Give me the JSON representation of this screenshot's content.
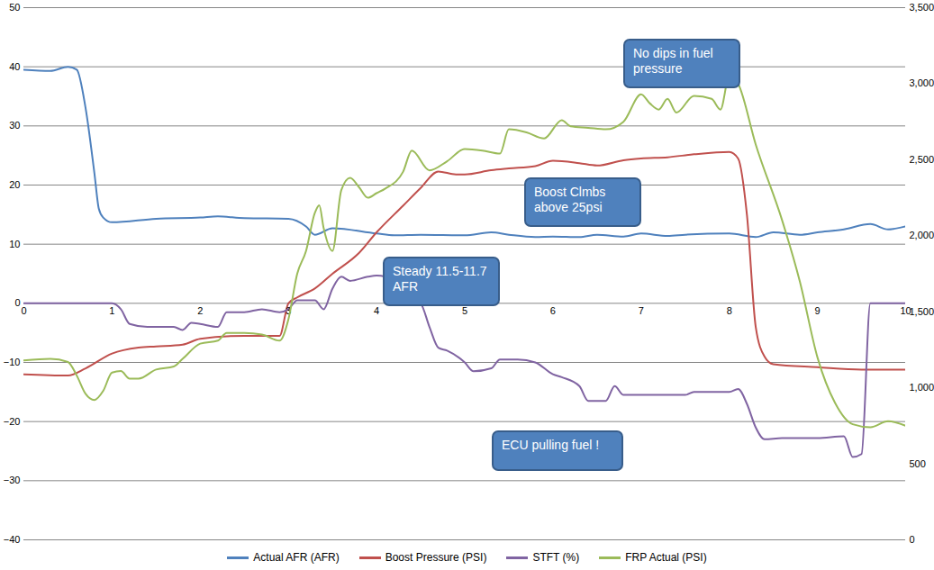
{
  "chart_data": {
    "type": "line",
    "xlim": [
      0,
      10
    ],
    "xticks": [
      0,
      1,
      2,
      3,
      4,
      5,
      6,
      7,
      8,
      9,
      10
    ],
    "ylim": [
      -40,
      50
    ],
    "yticks": [
      -40,
      -30,
      -20,
      -10,
      0,
      10,
      20,
      30,
      40,
      50
    ],
    "y2lim": [
      0,
      3500
    ],
    "y2ticks": [
      0,
      500,
      1000,
      1500,
      2000,
      2500,
      3000,
      3500
    ],
    "grid": true,
    "legend": "bottom",
    "annotations": [
      "No dips in fuel pressure",
      "Boost Clmbs above 25psi",
      "Steady 11.5-11.7 AFR",
      "ECU pulling fuel !"
    ],
    "series": [
      {
        "name": "Actual AFR (AFR)",
        "color": "#4f81bd",
        "x": [
          0,
          0.3,
          0.5,
          0.6,
          0.7,
          0.8,
          0.85,
          0.9,
          1,
          1.5,
          2,
          2.2,
          2.5,
          3,
          3.2,
          3.3,
          3.5,
          4,
          4.2,
          4.5,
          5,
          5.3,
          5.5,
          5.8,
          6,
          6.3,
          6.5,
          6.8,
          7,
          7.3,
          7.5,
          8,
          8.3,
          8.5,
          8.8,
          9,
          9.3,
          9.6,
          9.8,
          10
        ],
        "values": [
          39.5,
          39.3,
          40,
          39.5,
          33,
          22,
          16,
          14.5,
          13.7,
          14.3,
          14.5,
          14.7,
          14.4,
          14.3,
          13,
          11.6,
          12.7,
          11.8,
          11.5,
          11.6,
          11.5,
          12,
          11.6,
          11.2,
          11.3,
          11.2,
          11.6,
          11.3,
          11.8,
          11.4,
          11.6,
          11.8,
          11.2,
          12,
          11.6,
          12,
          12.5,
          13.4,
          12.5,
          13
        ]
      },
      {
        "name": "Boost Pressure (PSI)",
        "color": "#c0504d",
        "x": [
          0,
          0.5,
          0.7,
          1,
          1.3,
          1.5,
          1.8,
          2,
          2.5,
          2.9,
          3,
          3.1,
          3.3,
          3.5,
          3.8,
          4,
          4.3,
          4.5,
          4.7,
          4.9,
          5,
          5.3,
          5.5,
          5.8,
          6,
          6.3,
          6.5,
          6.8,
          7,
          7.3,
          7.6,
          8,
          8.1,
          8.2,
          8.3,
          8.4,
          8.5,
          9,
          9.5,
          10
        ],
        "values": [
          -12,
          -12.2,
          -11,
          -8.5,
          -7.5,
          -7.3,
          -7,
          -6,
          -5.5,
          -5.5,
          0,
          1,
          2.5,
          5,
          8.5,
          12,
          16.5,
          19.5,
          22.3,
          21.8,
          21.8,
          22.5,
          22.8,
          23.2,
          24.1,
          23.7,
          23.3,
          24.2,
          24.5,
          24.7,
          25.2,
          25.6,
          24.5,
          15,
          -4,
          -9,
          -10.3,
          -10.8,
          -11.2,
          -11.2
        ]
      },
      {
        "name": "STFT (%)",
        "color": "#8064a2",
        "x": [
          0,
          1,
          1.1,
          1.2,
          1.4,
          1.7,
          1.8,
          1.9,
          2,
          2.2,
          2.3,
          2.5,
          2.7,
          2.9,
          3,
          3.1,
          3.3,
          3.4,
          3.5,
          3.6,
          3.7,
          3.9,
          4,
          4.1,
          4.3,
          4.5,
          4.6,
          4.7,
          4.8,
          5,
          5.1,
          5.3,
          5.4,
          5.6,
          5.8,
          6,
          6.1,
          6.3,
          6.4,
          6.6,
          6.7,
          6.8,
          7,
          7.5,
          7.6,
          8,
          8.1,
          8.2,
          8.3,
          8.4,
          8.6,
          9,
          9.3,
          9.4,
          9.5,
          9.6,
          9.7,
          10
        ],
        "values": [
          0,
          0,
          -1,
          -3.5,
          -4,
          -4,
          -4.5,
          -3.3,
          -3.5,
          -4,
          -1.5,
          -1.5,
          -1,
          -1.5,
          -1,
          0.5,
          0.5,
          -1,
          2.5,
          4.5,
          3.8,
          4.5,
          4.7,
          4.5,
          1.5,
          0,
          -4,
          -7.5,
          -8,
          -10,
          -11.5,
          -11,
          -9.5,
          -9.5,
          -10,
          -12,
          -12.5,
          -14,
          -16.5,
          -16.5,
          -14,
          -15.5,
          -15.5,
          -15.5,
          -15,
          -15,
          -14.5,
          -17,
          -21,
          -23,
          -22.8,
          -22.8,
          -22.5,
          -26,
          -25.5,
          0,
          0,
          0
        ]
      },
      {
        "name": "FRP Actual (PSI)",
        "color": "#9bbb59",
        "axis": "y2",
        "x": [
          0,
          0.3,
          0.5,
          0.6,
          0.7,
          0.8,
          0.9,
          1,
          1.1,
          1.2,
          1.3,
          1.5,
          1.7,
          1.8,
          2,
          2.2,
          2.3,
          2.5,
          2.7,
          2.9,
          3,
          3.1,
          3.2,
          3.3,
          3.35,
          3.4,
          3.5,
          3.6,
          3.7,
          3.8,
          3.9,
          4,
          4.1,
          4.3,
          4.4,
          4.6,
          4.8,
          5,
          5.2,
          5.4,
          5.5,
          5.7,
          5.9,
          6.1,
          6.2,
          6.4,
          6.6,
          6.8,
          7,
          7.1,
          7.2,
          7.3,
          7.4,
          7.6,
          7.8,
          7.9,
          8,
          8.1,
          8.3,
          8.6,
          8.8,
          9,
          9.2,
          9.4,
          9.6,
          9.8,
          10
        ],
        "values": [
          1180,
          1190,
          1170,
          1080,
          960,
          920,
          980,
          1100,
          1110,
          1060,
          1060,
          1120,
          1140,
          1190,
          1290,
          1310,
          1360,
          1360,
          1350,
          1310,
          1450,
          1750,
          1900,
          2150,
          2200,
          2050,
          1900,
          2300,
          2380,
          2320,
          2250,
          2280,
          2310,
          2420,
          2560,
          2430,
          2490,
          2570,
          2560,
          2540,
          2700,
          2680,
          2640,
          2760,
          2720,
          2710,
          2700,
          2750,
          2930,
          2870,
          2830,
          2900,
          2810,
          2920,
          2900,
          2830,
          3050,
          3000,
          2600,
          2100,
          1700,
          1200,
          900,
          760,
          740,
          780,
          750
        ]
      }
    ]
  }
}
